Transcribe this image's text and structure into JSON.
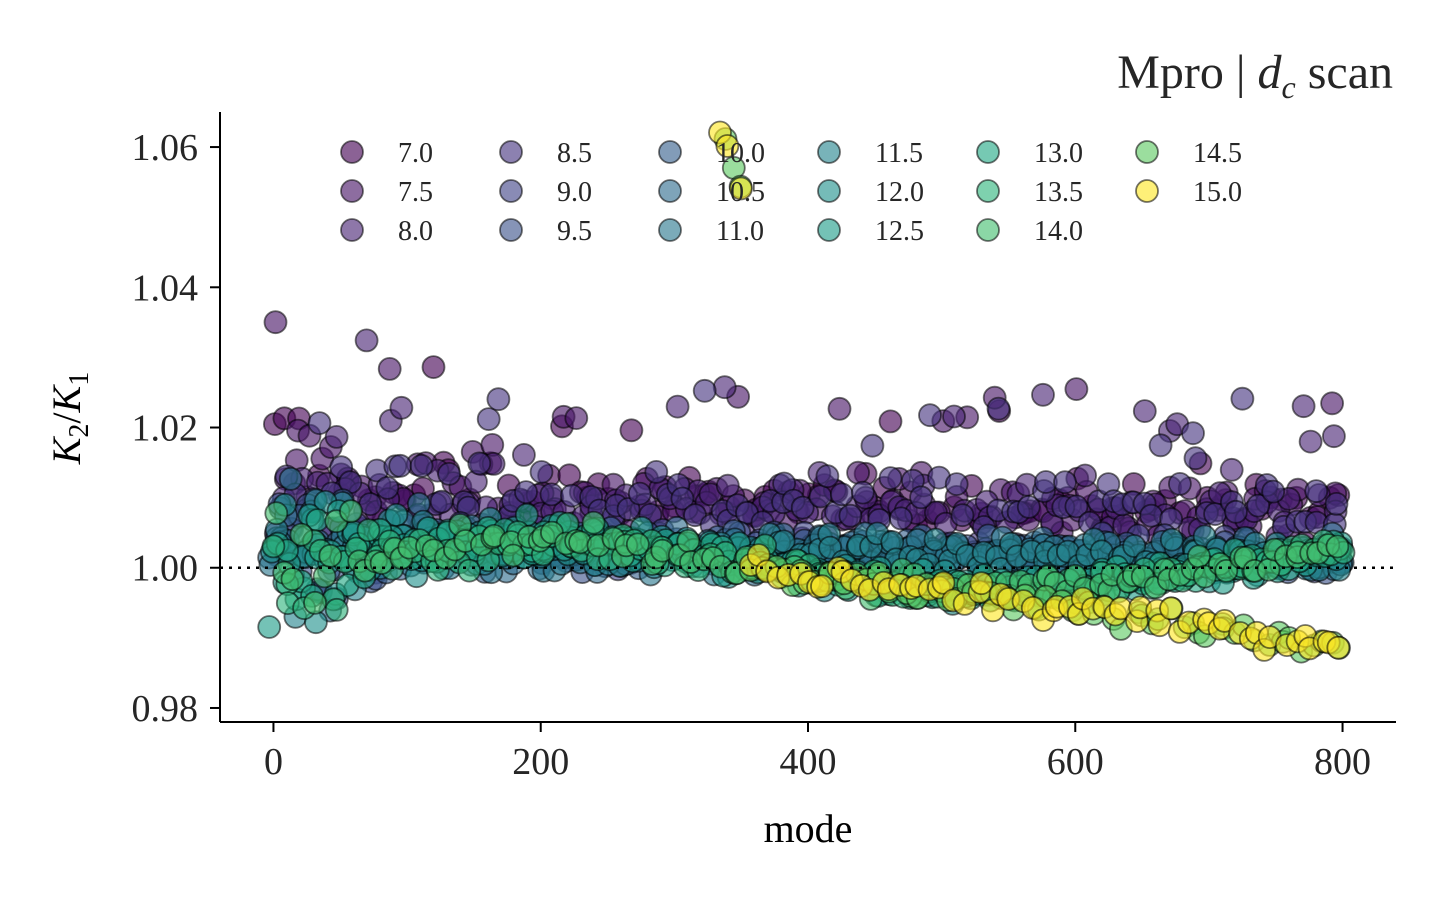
{
  "chart_data": {
    "type": "scatter",
    "title_prefix": "Mpro | ",
    "title_var": "d",
    "title_sub": "c",
    "title_suffix": " scan",
    "xlabel": "mode",
    "ylabel_main": "K",
    "ylabel_sub1": "2",
    "ylabel_div": "/",
    "ylabel_sub2": "1",
    "xlim": [
      -40,
      840
    ],
    "ylim": [
      0.978,
      1.065
    ],
    "xticks": [
      0,
      200,
      400,
      600,
      800
    ],
    "xtick_labels": [
      "0",
      "200",
      "400",
      "600",
      "800"
    ],
    "yticks": [
      0.98,
      1.0,
      1.02,
      1.04,
      1.06
    ],
    "ytick_labels": [
      "0.98",
      "1.00",
      "1.02",
      "1.04",
      "1.06"
    ],
    "reference_line_y": 1.0,
    "legend_position": "top",
    "series": [
      {
        "name": "7.0",
        "color": "#440154"
      },
      {
        "name": "7.5",
        "color": "#471365"
      },
      {
        "name": "8.0",
        "color": "#482475"
      },
      {
        "name": "8.5",
        "color": "#463480"
      },
      {
        "name": "9.0",
        "color": "#414487"
      },
      {
        "name": "9.5",
        "color": "#3b528b"
      },
      {
        "name": "10.0",
        "color": "#355f8d"
      },
      {
        "name": "10.5",
        "color": "#2f6c8e"
      },
      {
        "name": "11.0",
        "color": "#2a788e"
      },
      {
        "name": "11.5",
        "color": "#25858e"
      },
      {
        "name": "12.0",
        "color": "#21918c"
      },
      {
        "name": "12.5",
        "color": "#1e9c89"
      },
      {
        "name": "13.0",
        "color": "#22a884"
      },
      {
        "name": "13.5",
        "color": "#2fb47c"
      },
      {
        "name": "14.0",
        "color": "#44bf70"
      },
      {
        "name": "14.5",
        "color": "#5ec962"
      },
      {
        "name": "15.0",
        "color": "#fde725"
      }
    ]
  }
}
